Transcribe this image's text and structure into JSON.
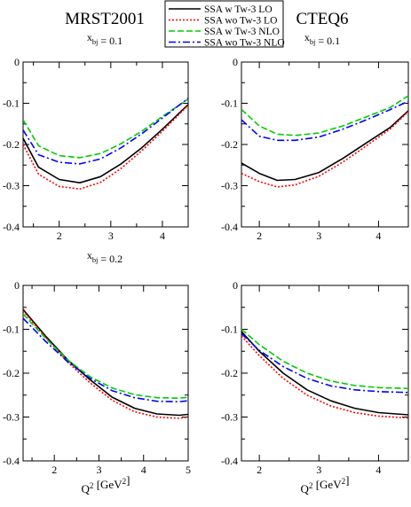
{
  "headers": {
    "left_title": "MRST2001",
    "right_title": "CTEQ6"
  },
  "legend": [
    {
      "label": "SSA w Tw-3 LO",
      "color": "#000000",
      "dash": "solid"
    },
    {
      "label": "SSA wo Tw-3 LO",
      "color": "#ff0000",
      "dash": "dotted"
    },
    {
      "label": "SSA w Tw-3 NLO",
      "color": "#00cc00",
      "dash": "dashed"
    },
    {
      "label": "SSA wo Tw-3 NLO",
      "color": "#0000ff",
      "dash": "dashdot"
    }
  ],
  "x_axis_label_bottom": "Q^2 [GeV^2]",
  "chart_data": [
    {
      "type": "line",
      "panel": "top-left",
      "annotation": "x_bj = 0.1",
      "xlim": [
        1.3,
        4.5
      ],
      "ylim": [
        -0.4,
        0
      ],
      "xticks": [
        2,
        3,
        4
      ],
      "yticks": [
        0,
        -0.1,
        -0.2,
        -0.3,
        -0.4
      ],
      "x": [
        1.3,
        1.6,
        2.0,
        2.4,
        2.8,
        3.2,
        3.6,
        4.0,
        4.5
      ],
      "series": [
        {
          "name": "SSA w Tw-3 LO",
          "values": [
            -0.185,
            -0.255,
            -0.285,
            -0.293,
            -0.278,
            -0.247,
            -0.208,
            -0.163,
            -0.103
          ]
        },
        {
          "name": "SSA wo Tw-3 LO",
          "values": [
            -0.2,
            -0.272,
            -0.302,
            -0.308,
            -0.292,
            -0.258,
            -0.215,
            -0.168,
            -0.105
          ]
        },
        {
          "name": "SSA w Tw-3 NLO",
          "values": [
            -0.14,
            -0.203,
            -0.227,
            -0.232,
            -0.222,
            -0.198,
            -0.168,
            -0.132,
            -0.09
          ]
        },
        {
          "name": "SSA wo Tw-3 NLO",
          "values": [
            -0.165,
            -0.225,
            -0.243,
            -0.247,
            -0.235,
            -0.208,
            -0.174,
            -0.136,
            -0.088
          ]
        }
      ]
    },
    {
      "type": "line",
      "panel": "top-right",
      "annotation": "x_bj = 0.1",
      "xlim": [
        1.7,
        4.5
      ],
      "ylim": [
        -0.4,
        0
      ],
      "xticks": [
        2,
        3,
        4
      ],
      "yticks": [
        0,
        -0.1,
        -0.2,
        -0.3,
        -0.4
      ],
      "x": [
        1.7,
        2.0,
        2.3,
        2.6,
        3.0,
        3.4,
        3.8,
        4.2,
        4.5
      ],
      "series": [
        {
          "name": "SSA w Tw-3 LO",
          "values": [
            -0.245,
            -0.27,
            -0.287,
            -0.285,
            -0.268,
            -0.234,
            -0.196,
            -0.158,
            -0.118
          ]
        },
        {
          "name": "SSA wo Tw-3 LO",
          "values": [
            -0.27,
            -0.29,
            -0.303,
            -0.298,
            -0.277,
            -0.243,
            -0.203,
            -0.162,
            -0.12
          ]
        },
        {
          "name": "SSA w Tw-3 NLO",
          "values": [
            -0.115,
            -0.155,
            -0.175,
            -0.178,
            -0.172,
            -0.155,
            -0.133,
            -0.11,
            -0.082
          ]
        },
        {
          "name": "SSA wo Tw-3 NLO",
          "values": [
            -0.14,
            -0.18,
            -0.19,
            -0.19,
            -0.182,
            -0.163,
            -0.14,
            -0.115,
            -0.095
          ]
        }
      ]
    },
    {
      "type": "line",
      "panel": "bottom-left",
      "annotation": "x_bj = 0.2",
      "xlim": [
        1.3,
        5
      ],
      "ylim": [
        -0.4,
        0
      ],
      "xticks": [
        2,
        3,
        4,
        5
      ],
      "yticks": [
        0,
        -0.1,
        -0.2,
        -0.3,
        -0.4
      ],
      "x": [
        1.3,
        1.8,
        2.3,
        2.8,
        3.3,
        3.8,
        4.3,
        4.8,
        5.0
      ],
      "series": [
        {
          "name": "SSA w Tw-3 LO",
          "values": [
            -0.055,
            -0.115,
            -0.17,
            -0.215,
            -0.255,
            -0.28,
            -0.293,
            -0.296,
            -0.294
          ]
        },
        {
          "name": "SSA wo Tw-3 LO",
          "values": [
            -0.058,
            -0.118,
            -0.175,
            -0.222,
            -0.262,
            -0.288,
            -0.3,
            -0.303,
            -0.3
          ]
        },
        {
          "name": "SSA w Tw-3 NLO",
          "values": [
            -0.065,
            -0.12,
            -0.17,
            -0.208,
            -0.234,
            -0.249,
            -0.256,
            -0.257,
            -0.255
          ]
        },
        {
          "name": "SSA wo Tw-3 NLO",
          "values": [
            -0.075,
            -0.127,
            -0.174,
            -0.212,
            -0.24,
            -0.256,
            -0.264,
            -0.265,
            -0.263
          ]
        }
      ]
    },
    {
      "type": "line",
      "panel": "bottom-right",
      "annotation": "",
      "xlim": [
        1.7,
        4.5
      ],
      "ylim": [
        -0.4,
        0
      ],
      "xticks": [
        2,
        3,
        4
      ],
      "yticks": [
        0,
        -0.1,
        -0.2,
        -0.3,
        -0.4
      ],
      "x": [
        1.7,
        2.0,
        2.4,
        2.8,
        3.2,
        3.6,
        4.0,
        4.5
      ],
      "series": [
        {
          "name": "SSA w Tw-3 LO",
          "values": [
            -0.105,
            -0.15,
            -0.2,
            -0.238,
            -0.263,
            -0.28,
            -0.29,
            -0.295
          ]
        },
        {
          "name": "SSA wo Tw-3 LO",
          "values": [
            -0.115,
            -0.16,
            -0.212,
            -0.25,
            -0.275,
            -0.29,
            -0.298,
            -0.302
          ]
        },
        {
          "name": "SSA w Tw-3 NLO",
          "values": [
            -0.1,
            -0.135,
            -0.173,
            -0.2,
            -0.218,
            -0.228,
            -0.233,
            -0.235
          ]
        },
        {
          "name": "SSA wo Tw-3 NLO",
          "values": [
            -0.11,
            -0.148,
            -0.185,
            -0.212,
            -0.229,
            -0.238,
            -0.242,
            -0.244
          ]
        }
      ]
    }
  ]
}
